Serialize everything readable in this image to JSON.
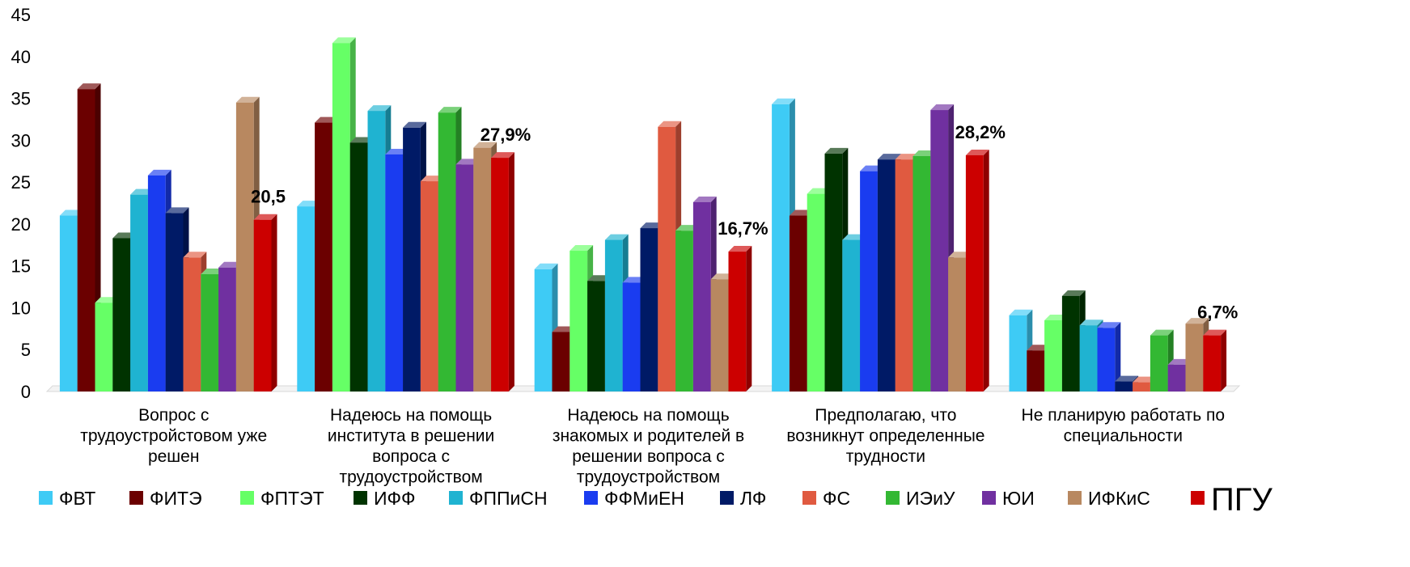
{
  "chart_data": {
    "type": "bar",
    "title": "",
    "xlabel": "",
    "ylabel": "",
    "ylim": [
      0,
      45
    ],
    "yticks": [
      0,
      5,
      10,
      15,
      20,
      25,
      30,
      35,
      40,
      45
    ],
    "grid": false,
    "legend_position": "bottom",
    "categories": [
      "Вопрос с трудоустройстовом уже решен",
      "Надеюсь на помощь института в решении вопроса с трудоустройством",
      "Надеюсь на помощь знакомых и родителей в решении вопроса с трудоустройством",
      "Предполагаю, что возникнут определенные трудности",
      "Не планирую работать по специальности"
    ],
    "category_lines": [
      [
        "Вопрос с",
        "трудоустройстовом уже",
        "решен"
      ],
      [
        "Надеюсь на помощь",
        "института в решении",
        "вопроса с",
        "трудоустройством"
      ],
      [
        "Надеюсь на помощь",
        "знакомых и родителей в",
        "решении вопроса с",
        "трудоустройством"
      ],
      [
        "Предполагаю, что",
        "возникнут определенные",
        "трудности"
      ],
      [
        "Не планирую работать по",
        "специальности"
      ]
    ],
    "series": [
      {
        "name": "ФВТ",
        "color": "#3ecbf5",
        "values": [
          21,
          22.1,
          14.6,
          34.3,
          9.1
        ]
      },
      {
        "name": "ФИТЭ",
        "color": "#6b0000",
        "values": [
          36.1,
          32.1,
          7.1,
          21,
          4.9
        ]
      },
      {
        "name": "ФПТЭТ",
        "color": "#66ff66",
        "values": [
          10.6,
          41.6,
          16.8,
          23.6,
          8.5
        ]
      },
      {
        "name": "ИФФ",
        "color": "#003300",
        "values": [
          18.3,
          29.7,
          13.2,
          28.4,
          11.4
        ]
      },
      {
        "name": "ФППиСН",
        "color": "#1fb3d1",
        "values": [
          23.5,
          33.5,
          18.1,
          18.1,
          7.9
        ]
      },
      {
        "name": "ФФМиЕН",
        "color": "#1a3cf0",
        "values": [
          25.8,
          28.3,
          13,
          26.3,
          7.6
        ]
      },
      {
        "name": "ЛФ",
        "color": "#001a66",
        "values": [
          21.3,
          31.5,
          19.5,
          27.7,
          1.2
        ]
      },
      {
        "name": "ФС",
        "color": "#e05a40",
        "values": [
          16,
          25.1,
          31.6,
          27.7,
          1.1
        ]
      },
      {
        "name": "ИЭиУ",
        "color": "#33b833",
        "values": [
          14,
          33.3,
          19.2,
          28.1,
          6.7
        ]
      },
      {
        "name": "ЮИ",
        "color": "#7030a0",
        "values": [
          14.8,
          27.1,
          22.6,
          33.6,
          3.2
        ]
      },
      {
        "name": "ИФКиС",
        "color": "#b88860",
        "values": [
          34.5,
          29.1,
          13.4,
          16,
          8.1
        ]
      },
      {
        "name": "ПГУ",
        "color": "#cc0000",
        "values": [
          20.5,
          27.9,
          16.7,
          28.2,
          6.7
        ]
      }
    ],
    "data_labels": [
      "20,5",
      "27,9%",
      "16,7%",
      "28,2%",
      "6,7%"
    ]
  }
}
